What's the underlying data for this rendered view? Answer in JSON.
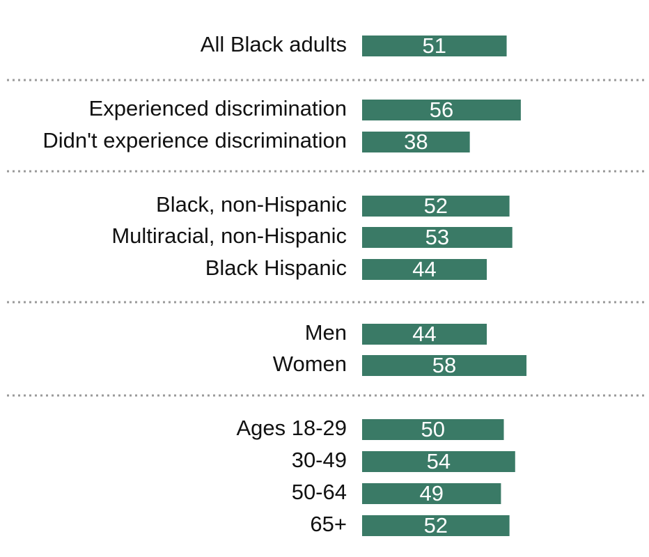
{
  "chart_data": {
    "type": "bar",
    "orientation": "horizontal",
    "bar_color": "#3a7a66",
    "value_label_color": "#ffffff",
    "xlim": [
      0,
      100
    ],
    "groups": [
      {
        "rows": [
          {
            "label": "All Black adults",
            "value": 51
          }
        ]
      },
      {
        "rows": [
          {
            "label": "Experienced discrimination",
            "value": 56
          },
          {
            "label": "Didn't experience discrimination",
            "value": 38
          }
        ]
      },
      {
        "rows": [
          {
            "label": "Black, non-Hispanic",
            "value": 52
          },
          {
            "label": "Multiracial, non-Hispanic",
            "value": 53
          },
          {
            "label": "Black Hispanic",
            "value": 44
          }
        ]
      },
      {
        "rows": [
          {
            "label": "Men",
            "value": 44
          },
          {
            "label": "Women",
            "value": 58
          }
        ]
      },
      {
        "rows": [
          {
            "label": "Ages 18-29",
            "value": 50
          },
          {
            "label": "30-49",
            "value": 54
          },
          {
            "label": "50-64",
            "value": 49
          },
          {
            "label": "65+",
            "value": 52
          }
        ]
      }
    ]
  }
}
